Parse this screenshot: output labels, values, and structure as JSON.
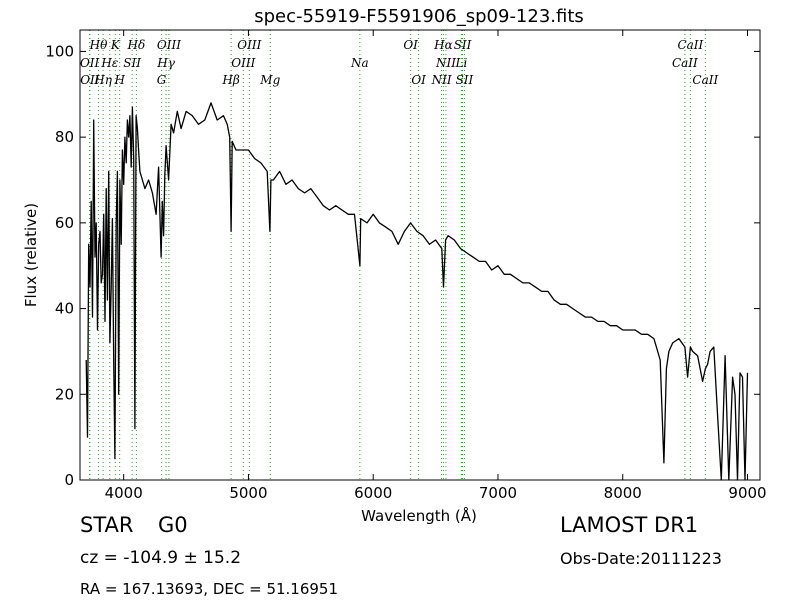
{
  "chart_data": {
    "type": "line",
    "title": "spec-55919-F5591906_sp09-123.fits",
    "xlabel": "Wavelength (Å)",
    "ylabel": "Flux (relative)",
    "xlim": [
      3650,
      9100
    ],
    "ylim": [
      0,
      105
    ],
    "xticks": [
      4000,
      5000,
      6000,
      7000,
      8000,
      9000
    ],
    "yticks": [
      0,
      20,
      40,
      60,
      80,
      100
    ],
    "grid": false,
    "line_color": "#000000",
    "marker_color": "#2ca02c",
    "series": [
      {
        "x": [
          3700,
          3710,
          3720,
          3730,
          3740,
          3750,
          3760,
          3770,
          3780,
          3790,
          3800,
          3810,
          3820,
          3830,
          3840,
          3850,
          3860,
          3870,
          3880,
          3890,
          3900,
          3910,
          3920,
          3930,
          3940,
          3950,
          3960,
          3970,
          3980,
          3990,
          4000,
          4010,
          4020,
          4030,
          4040,
          4050,
          4060,
          4070,
          4080,
          4090,
          4100,
          4110,
          4120,
          4130,
          4150,
          4170,
          4200,
          4230,
          4260,
          4280,
          4300,
          4310,
          4320,
          4330,
          4340,
          4360,
          4380,
          4400,
          4430,
          4460,
          4500,
          4550,
          4600,
          4650,
          4700,
          4750,
          4800,
          4830,
          4850,
          4861,
          4870,
          4900,
          4950,
          5000,
          5050,
          5100,
          5150,
          5172,
          5180,
          5200,
          5250,
          5300,
          5350,
          5400,
          5450,
          5500,
          5550,
          5600,
          5650,
          5700,
          5750,
          5800,
          5850,
          5893,
          5900,
          5950,
          6000,
          6050,
          6100,
          6150,
          6200,
          6250,
          6300,
          6350,
          6400,
          6450,
          6500,
          6550,
          6563,
          6580,
          6600,
          6650,
          6700,
          6750,
          6800,
          6850,
          6900,
          6950,
          7000,
          7050,
          7100,
          7150,
          7200,
          7250,
          7300,
          7350,
          7400,
          7450,
          7500,
          7550,
          7600,
          7650,
          7700,
          7750,
          7800,
          7850,
          7900,
          7950,
          8000,
          8050,
          8100,
          8150,
          8200,
          8250,
          8300,
          8330,
          8350,
          8370,
          8400,
          8450,
          8498,
          8520,
          8542,
          8560,
          8600,
          8640,
          8662,
          8680,
          8700,
          8730,
          8760,
          8790,
          8820,
          8850,
          8880,
          8900,
          8920,
          8940,
          8960,
          8980,
          9000
        ],
        "y": [
          28,
          10,
          55,
          45,
          65,
          38,
          84,
          52,
          60,
          35,
          55,
          58,
          46,
          48,
          62,
          37,
          68,
          42,
          72,
          32,
          45,
          61,
          28,
          5,
          60,
          72,
          20,
          70,
          55,
          77,
          69,
          80,
          74,
          84,
          80,
          85,
          73,
          87,
          75,
          12,
          85,
          82,
          77,
          72,
          70,
          68,
          70,
          67,
          62,
          73,
          52,
          65,
          57,
          71,
          78,
          70,
          83,
          81,
          86,
          82,
          86,
          85,
          83,
          84,
          88,
          84,
          85,
          83,
          80,
          58,
          79,
          77,
          77,
          77,
          75,
          74,
          72,
          58,
          70,
          70,
          72,
          69,
          70,
          68,
          67,
          68,
          66,
          64,
          63,
          64,
          63,
          62,
          62,
          50,
          61,
          60,
          62,
          60,
          59,
          58,
          55,
          58,
          60,
          58,
          57,
          55,
          56,
          54,
          45,
          56,
          57,
          56,
          54,
          53,
          52,
          51,
          51,
          49,
          50,
          48,
          48,
          47,
          46,
          46,
          45,
          44,
          44,
          42,
          41,
          41,
          40,
          39,
          38,
          38,
          37,
          37,
          36,
          36,
          35,
          35,
          35,
          34,
          34,
          33,
          28,
          4,
          26,
          30,
          32,
          33,
          31,
          24,
          31,
          30,
          29,
          23,
          26,
          27,
          30,
          31,
          15,
          0,
          29,
          0,
          24,
          20,
          0,
          25,
          24,
          0,
          25
        ]
      }
    ],
    "lines_top": [
      {
        "label": "Hθ",
        "wl": 3798
      },
      {
        "label": "K",
        "wl": 3933
      },
      {
        "label": "Hδ",
        "wl": 4102
      },
      {
        "label": "OIII",
        "wl": 4363
      },
      {
        "label": "OIII",
        "wl": 5007
      },
      {
        "label": "OI",
        "wl": 6300
      },
      {
        "label": "Hα",
        "wl": 6563
      },
      {
        "label": "SII",
        "wl": 6716
      },
      {
        "label": "CaII",
        "wl": 8542
      }
    ],
    "lines_top2": [
      {
        "label": "OII",
        "wl": 3727
      },
      {
        "label": "Hε",
        "wl": 3889
      },
      {
        "label": "SII",
        "wl": 4068
      },
      {
        "label": "Hγ",
        "wl": 4340
      },
      {
        "label": "OIII",
        "wl": 4959
      },
      {
        "label": "Na",
        "wl": 5893
      },
      {
        "label": "NII",
        "wl": 6583
      },
      {
        "label": "Li",
        "wl": 6707
      },
      {
        "label": "CaII",
        "wl": 8498
      }
    ],
    "lines_bottom": [
      {
        "label": "OII",
        "wl": 3729
      },
      {
        "label": "Hη",
        "wl": 3835
      },
      {
        "label": "H",
        "wl": 3968
      },
      {
        "label": "G",
        "wl": 4304
      },
      {
        "label": "Hβ",
        "wl": 4861
      },
      {
        "label": "Mg",
        "wl": 5175
      },
      {
        "label": "OI",
        "wl": 6364
      },
      {
        "label": "NII",
        "wl": 6548
      },
      {
        "label": "SII",
        "wl": 6731
      },
      {
        "label": "CaII",
        "wl": 8662
      }
    ]
  },
  "info": {
    "class_type": "STAR",
    "subclass": "G0",
    "survey": "LAMOST DR1",
    "cz": "cz = -104.9  ± 15.2",
    "obs_date": "Obs-Date:20111223",
    "radec": "RA = 167.13693, DEC = 51.16951"
  }
}
